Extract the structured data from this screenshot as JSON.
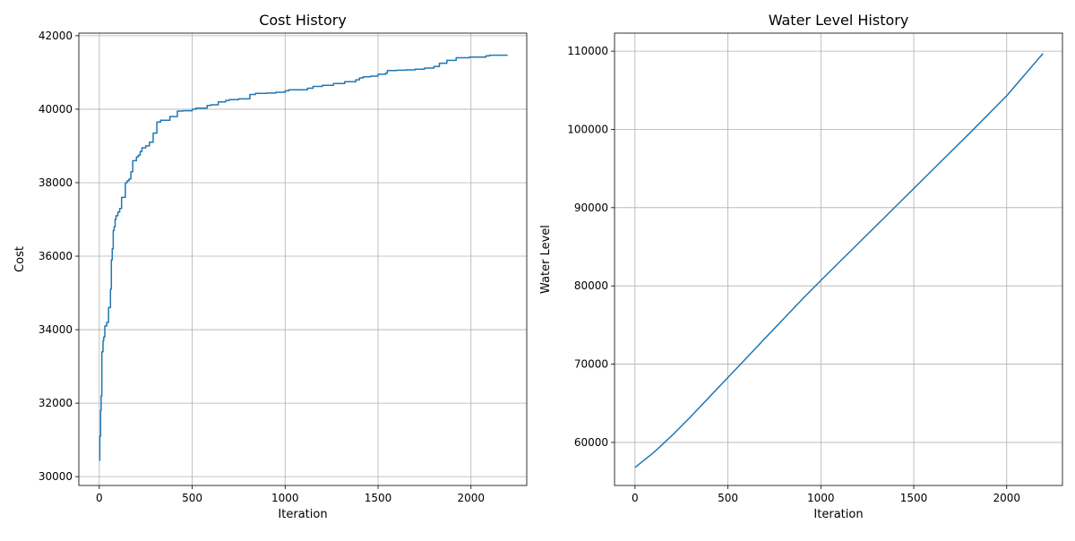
{
  "chart_data": [
    {
      "type": "line",
      "title": "Cost History",
      "xlabel": "Iteration",
      "ylabel": "Cost",
      "xlim": [
        -110,
        2300
      ],
      "ylim": [
        29760,
        42070
      ],
      "xticks": [
        0,
        500,
        1000,
        1500,
        2000
      ],
      "yticks": [
        30000,
        32000,
        34000,
        36000,
        38000,
        40000,
        42000
      ],
      "grid": true,
      "step": true,
      "color": "#1f77b4",
      "series": [
        {
          "x": [
            0,
            3,
            7,
            10,
            14,
            20,
            24,
            30,
            40,
            50,
            60,
            65,
            70,
            75,
            80,
            85,
            90,
            100,
            110,
            120,
            140,
            150,
            160,
            170,
            180,
            200,
            210,
            220,
            230,
            250,
            270,
            290,
            310,
            330,
            380,
            420,
            450,
            500,
            520,
            580,
            600,
            640,
            680,
            700,
            750,
            810,
            840,
            900,
            950,
            1000,
            1020,
            1120,
            1150,
            1200,
            1260,
            1320,
            1380,
            1400,
            1420,
            1460,
            1500,
            1540,
            1550,
            1600,
            1650,
            1700,
            1750,
            1800,
            1830,
            1870,
            1920,
            1990,
            2080,
            2100,
            2195
          ],
          "y": [
            30450,
            31100,
            31800,
            32200,
            33400,
            33700,
            33800,
            34100,
            34200,
            34600,
            35100,
            35900,
            36200,
            36700,
            36800,
            37000,
            37100,
            37200,
            37300,
            37600,
            38000,
            38050,
            38100,
            38300,
            38600,
            38700,
            38750,
            38850,
            38950,
            39000,
            39100,
            39350,
            39650,
            39700,
            39800,
            39950,
            39960,
            40000,
            40030,
            40100,
            40120,
            40200,
            40240,
            40260,
            40280,
            40400,
            40430,
            40440,
            40460,
            40500,
            40530,
            40570,
            40620,
            40650,
            40700,
            40750,
            40800,
            40850,
            40880,
            40900,
            40950,
            40980,
            41050,
            41060,
            41070,
            41090,
            41120,
            41160,
            41250,
            41330,
            41400,
            41420,
            41450,
            41470,
            41480
          ]
        }
      ]
    },
    {
      "type": "line",
      "title": "Water Level History",
      "xlabel": "Iteration",
      "ylabel": "Water Level",
      "xlim": [
        -110,
        2300
      ],
      "ylim": [
        54500,
        112300
      ],
      "xticks": [
        0,
        500,
        1000,
        1500,
        2000
      ],
      "yticks": [
        60000,
        70000,
        80000,
        90000,
        100000,
        110000
      ],
      "grid": true,
      "color": "#1f77b4",
      "series": [
        {
          "x": [
            0,
            100,
            200,
            300,
            400,
            500,
            600,
            700,
            800,
            900,
            1000,
            1200,
            1400,
            1600,
            1800,
            2000,
            2195
          ],
          "y": [
            56800,
            58700,
            60900,
            63300,
            65800,
            68300,
            70800,
            73300,
            75800,
            78300,
            80700,
            85400,
            90100,
            94800,
            99500,
            104300,
            109700
          ]
        }
      ]
    }
  ]
}
